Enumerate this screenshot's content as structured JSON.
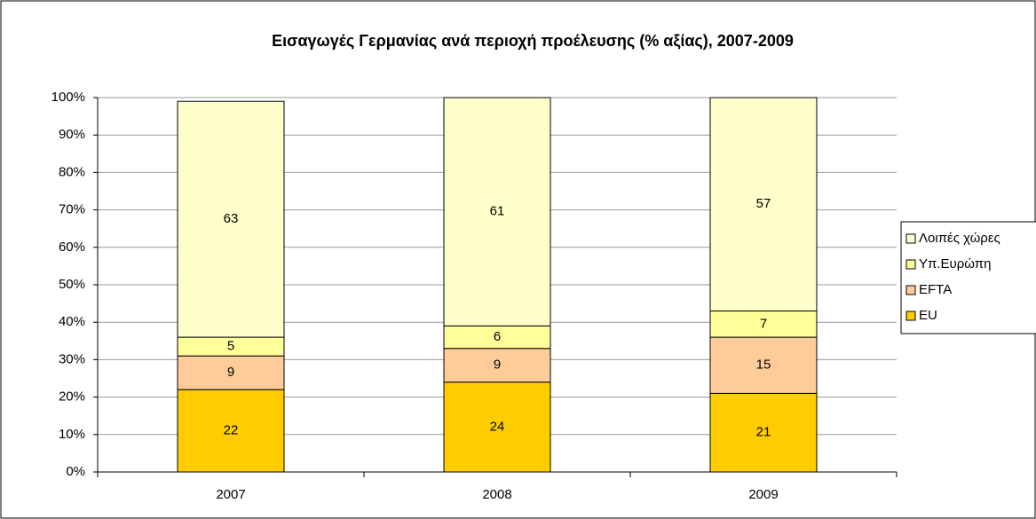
{
  "chart_data": {
    "type": "stacked_bar",
    "title": "Εισαγωγές Γερμανίας ανά περιοχή προέλευσης (% αξίας), 2007-2009",
    "categories": [
      "2007",
      "2008",
      "2009"
    ],
    "series": [
      {
        "name": "EU",
        "color": "#FFCC00",
        "values": [
          22,
          24,
          21
        ]
      },
      {
        "name": "EFTA",
        "color": "#FFCC99",
        "values": [
          9,
          9,
          15
        ]
      },
      {
        "name": "Υπ.Ευρώπη",
        "color": "#FFFF99",
        "values": [
          5,
          6,
          7
        ]
      },
      {
        "name": "Λοιπές χώρες",
        "color": "#FFFFCC",
        "values": [
          63,
          61,
          57
        ]
      }
    ],
    "ylim": [
      0,
      100
    ],
    "yticks": [
      {
        "value": 0,
        "label": "0%"
      },
      {
        "value": 10,
        "label": "10%"
      },
      {
        "value": 20,
        "label": "20%"
      },
      {
        "value": 30,
        "label": "30%"
      },
      {
        "value": 40,
        "label": "40%"
      },
      {
        "value": 50,
        "label": "50%"
      },
      {
        "value": 60,
        "label": "60%"
      },
      {
        "value": 70,
        "label": "70%"
      },
      {
        "value": 80,
        "label": "80%"
      },
      {
        "value": 90,
        "label": "90%"
      },
      {
        "value": 100,
        "label": "100%"
      }
    ],
    "grid": true,
    "legend": "right"
  }
}
